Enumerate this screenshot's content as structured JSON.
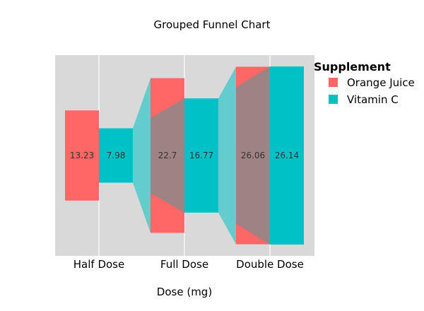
{
  "chart_data": {
    "type": "funnel",
    "title": "Grouped Funnel Chart",
    "xlabel": "Dose (mg)",
    "ylabel": "",
    "categories": [
      "Half Dose",
      "Full Dose",
      "Double Dose"
    ],
    "legend": {
      "title": "Supplement",
      "position": "right"
    },
    "series": [
      {
        "name": "Orange Juice",
        "values": [
          13.23,
          22.7,
          26.06
        ],
        "color": "#ff6666"
      },
      {
        "name": "Vitamin C",
        "values": [
          7.98,
          16.77,
          26.14
        ],
        "color": "#00c1c6"
      }
    ],
    "colors": {
      "panel_background": "#d9d9d9",
      "gridline": "#ffffff",
      "connector_alpha": 0.55
    },
    "grid": true
  }
}
